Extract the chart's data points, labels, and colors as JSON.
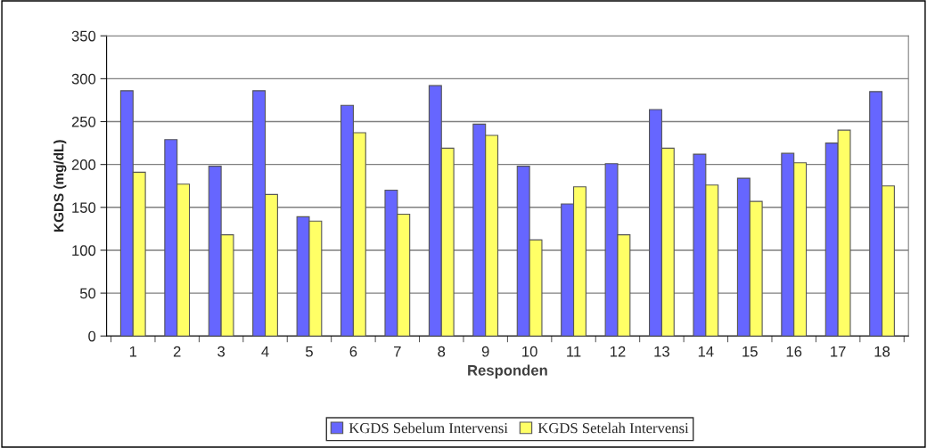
{
  "chart_data": {
    "type": "bar",
    "xlabel": "Responden",
    "ylabel": "KGDS (mg/dL)",
    "categories": [
      "1",
      "2",
      "3",
      "4",
      "5",
      "6",
      "7",
      "8",
      "9",
      "10",
      "11",
      "12",
      "13",
      "14",
      "15",
      "16",
      "17",
      "18"
    ],
    "series": [
      {
        "name": "KGDS Sebelum Intervensi",
        "color": "#6666ff",
        "values": [
          286,
          229,
          198,
          286,
          139,
          269,
          170,
          292,
          247,
          198,
          154,
          201,
          264,
          212,
          184,
          213,
          225,
          285
        ]
      },
      {
        "name": "KGDS Setelah Intervensi",
        "color": "#ffff66",
        "values": [
          191,
          177,
          118,
          165,
          134,
          237,
          142,
          219,
          234,
          112,
          174,
          118,
          219,
          176,
          157,
          202,
          240,
          175
        ]
      }
    ],
    "ylim": [
      0,
      350
    ],
    "yticks": [
      0,
      50,
      100,
      150,
      200,
      250,
      300,
      350
    ],
    "grid": "y",
    "legend": "bottom"
  }
}
